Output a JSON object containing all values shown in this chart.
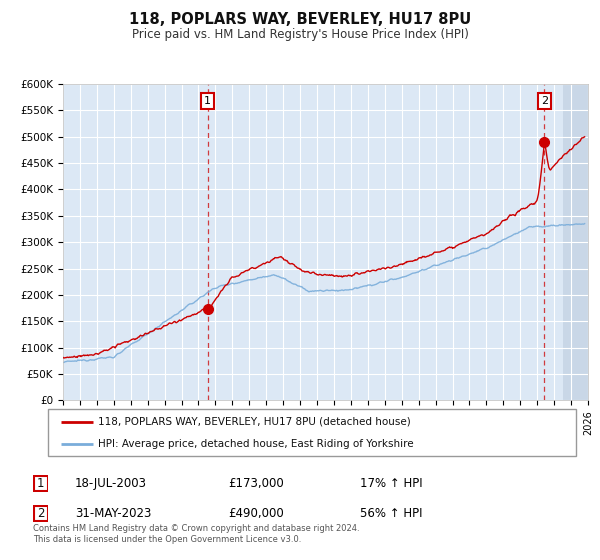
{
  "title": "118, POPLARS WAY, BEVERLEY, HU17 8PU",
  "subtitle": "Price paid vs. HM Land Registry's House Price Index (HPI)",
  "legend_line1": "118, POPLARS WAY, BEVERLEY, HU17 8PU (detached house)",
  "legend_line2": "HPI: Average price, detached house, East Riding of Yorkshire",
  "annotation1_date": "18-JUL-2003",
  "annotation1_price": "£173,000",
  "annotation1_hpi": "17% ↑ HPI",
  "annotation2_date": "31-MAY-2023",
  "annotation2_price": "£490,000",
  "annotation2_hpi": "56% ↑ HPI",
  "footer": "Contains HM Land Registry data © Crown copyright and database right 2024.\nThis data is licensed under the Open Government Licence v3.0.",
  "xlim_start": 1995.0,
  "xlim_end": 2026.0,
  "ylim": [
    0,
    600000
  ],
  "red_color": "#cc0000",
  "blue_color": "#7aadda",
  "bg_color": "#dce8f5",
  "hatch_color": "#c0cfe0",
  "plot_bg": "#ffffff",
  "marker1_x": 2003.54,
  "marker1_y": 173000,
  "marker2_x": 2023.42,
  "marker2_y": 490000,
  "vline1_x": 2003.54,
  "vline2_x": 2023.42,
  "hatch_start": 2024.5
}
